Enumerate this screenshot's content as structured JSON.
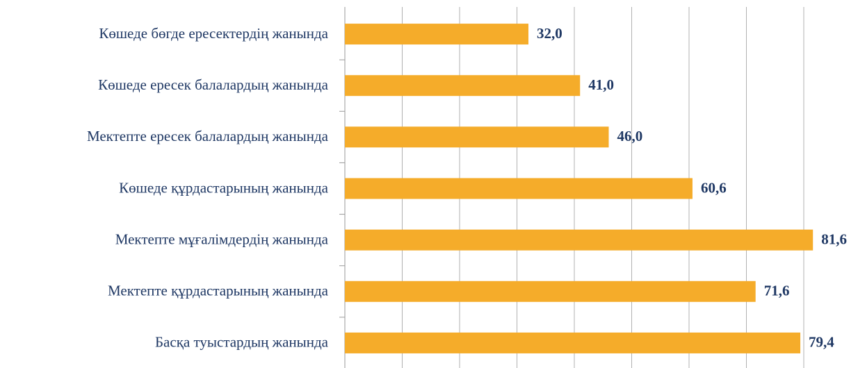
{
  "chart_data": {
    "type": "barh",
    "categories": [
      "Көшеде бөгде ересектердің жанында",
      "Көшеде ересек балалардың жанында",
      "Мектепте ересек балалардың жанында",
      "Көшеде құрдастарының жанында",
      "Мектепте мұғалімдердің жанында",
      "Мектепте құрдастарының жанында",
      "Басқа туыстардың жанында"
    ],
    "values": [
      32.0,
      41.0,
      46.0,
      60.6,
      81.6,
      71.6,
      79.4
    ],
    "value_labels": [
      "32,0",
      "41,0",
      "46,0",
      "60,6",
      "81,6",
      "71,6",
      "79,4"
    ],
    "color": "#f5ac2a",
    "xlim": [
      0,
      90
    ],
    "xticks": [
      0,
      10,
      20,
      30,
      40,
      50,
      60,
      70,
      80
    ],
    "grid": true
  }
}
